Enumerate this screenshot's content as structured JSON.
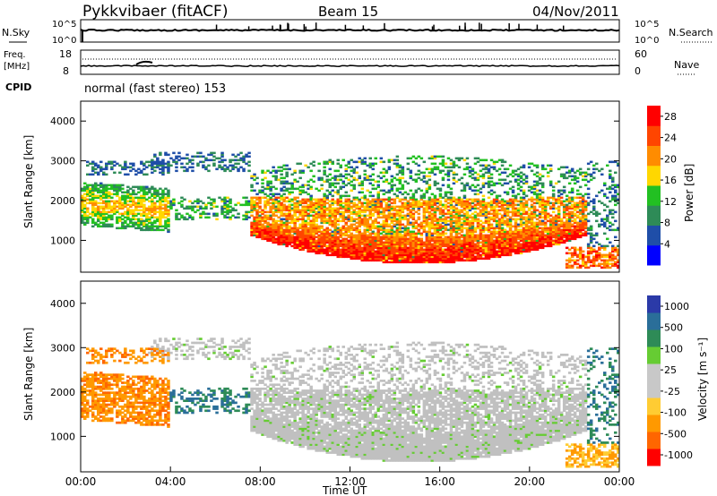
{
  "header": {
    "station": "Pykkvibaer (fitACF)",
    "beam": "Beam 15",
    "date": "04/Nov/2011"
  },
  "panels": {
    "nsky": {
      "left_label": "N.Sky",
      "right_label": "N.Search",
      "tick_top": "10^5",
      "tick_bottom": "10^0"
    },
    "freq": {
      "left_label_1": "Freq.",
      "left_label_2": "[MHz]",
      "right_label": "Nave",
      "left_ticks": [
        "18",
        "8"
      ],
      "right_ticks": [
        "60",
        "0"
      ]
    },
    "cpid": {
      "label": "CPID",
      "value": "normal (fast stereo) 153"
    }
  },
  "colors": {
    "power_scale": [
      "#0000ff",
      "#1f4ea8",
      "#2e8b57",
      "#22c022",
      "#ffd700",
      "#ff8c00",
      "#ff4500",
      "#ff0000"
    ],
    "velocity_scale": [
      "#ff0000",
      "#ff6600",
      "#ff9900",
      "#ffcc33",
      "#c8c8c8",
      "#c8c8c8",
      "#66cc33",
      "#2e8b57",
      "#2a6e99",
      "#2b3aa8"
    ],
    "ground_scatter": "#c0c0c0"
  },
  "chart_data": [
    {
      "type": "heatmap",
      "name": "power",
      "xlabel": "",
      "ylabel": "Slant Range [km]",
      "y_ticks": [
        "1000",
        "2000",
        "3000",
        "4000"
      ],
      "ylim": [
        200,
        4500
      ],
      "colorbar_label": "Power [dB]",
      "colorbar_ticks": [
        "4",
        "8",
        "12",
        "16",
        "20",
        "24",
        "28"
      ],
      "colorbar_range": [
        0,
        30
      ]
    },
    {
      "type": "heatmap",
      "name": "velocity",
      "xlabel": "Time UT",
      "ylabel": "Slant Range [km]",
      "y_ticks": [
        "1000",
        "2000",
        "3000",
        "4000"
      ],
      "ylim": [
        200,
        4500
      ],
      "x_ticks": [
        "00:00",
        "04:00",
        "08:00",
        "12:00",
        "16:00",
        "20:00",
        "00:00"
      ],
      "colorbar_label": "Velocity [m s⁻¹]",
      "colorbar_ticks": [
        "1000",
        "500",
        "100",
        "25",
        "-25",
        "-100",
        "-500",
        "-1000"
      ],
      "colorbar_range": [
        -1000,
        1000
      ]
    }
  ]
}
